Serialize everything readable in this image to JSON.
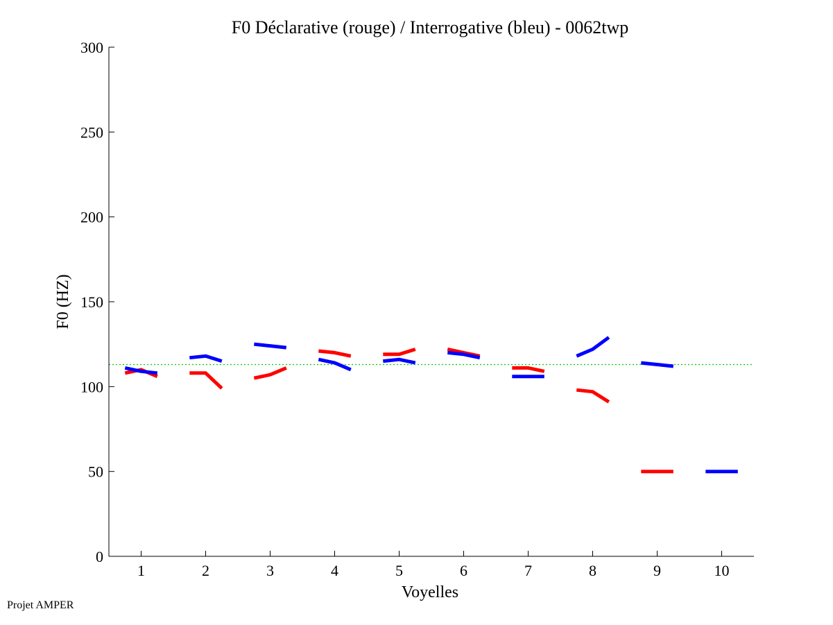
{
  "chart_data": {
    "type": "line",
    "title": "F0 Déclarative (rouge) / Interrogative (bleu) - 0062twp",
    "xlabel": "Voyelles",
    "ylabel": "F0 (HZ)",
    "xlim": [
      0.5,
      10.5
    ],
    "ylim": [
      0,
      300
    ],
    "x_ticks": [
      1,
      2,
      3,
      4,
      5,
      6,
      7,
      8,
      9,
      10
    ],
    "y_ticks": [
      0,
      50,
      100,
      150,
      200,
      250,
      300
    ],
    "reference_line": {
      "y": 113,
      "color": "#00cc00",
      "style": "dotted"
    },
    "series": [
      {
        "color": "#ff0000",
        "segments": [
          {
            "x": [
              0.75,
              1.0,
              1.25
            ],
            "y": [
              108,
              110,
              106
            ]
          },
          {
            "x": [
              1.75,
              2.0,
              2.25
            ],
            "y": [
              108,
              108,
              99
            ]
          },
          {
            "x": [
              2.75,
              3.0,
              3.25
            ],
            "y": [
              105,
              107,
              111
            ]
          },
          {
            "x": [
              3.75,
              4.0,
              4.25
            ],
            "y": [
              121,
              120,
              118
            ]
          },
          {
            "x": [
              4.75,
              5.0,
              5.25
            ],
            "y": [
              119,
              119,
              122
            ]
          },
          {
            "x": [
              5.75,
              6.0,
              6.25
            ],
            "y": [
              122,
              120,
              118
            ]
          },
          {
            "x": [
              6.75,
              7.0,
              7.25
            ],
            "y": [
              111,
              111,
              109
            ]
          },
          {
            "x": [
              7.75,
              8.0,
              8.25
            ],
            "y": [
              98,
              97,
              91
            ]
          },
          {
            "x": [
              8.75,
              9.0,
              9.25
            ],
            "y": [
              50,
              50,
              50
            ]
          }
        ]
      },
      {
        "color": "#0000ff",
        "segments": [
          {
            "x": [
              0.75,
              1.0,
              1.25
            ],
            "y": [
              111,
              109,
              108
            ]
          },
          {
            "x": [
              1.75,
              2.0,
              2.25
            ],
            "y": [
              117,
              118,
              115
            ]
          },
          {
            "x": [
              2.75,
              3.0,
              3.25
            ],
            "y": [
              125,
              124,
              123
            ]
          },
          {
            "x": [
              3.75,
              4.0,
              4.25
            ],
            "y": [
              116,
              114,
              110
            ]
          },
          {
            "x": [
              4.75,
              5.0,
              5.25
            ],
            "y": [
              115,
              116,
              114
            ]
          },
          {
            "x": [
              5.75,
              6.0,
              6.25
            ],
            "y": [
              120,
              119,
              117
            ]
          },
          {
            "x": [
              6.75,
              7.0,
              7.25
            ],
            "y": [
              106,
              106,
              106
            ]
          },
          {
            "x": [
              7.75,
              8.0,
              8.25
            ],
            "y": [
              118,
              122,
              129
            ]
          },
          {
            "x": [
              8.75,
              9.0,
              9.25
            ],
            "y": [
              114,
              113,
              112
            ]
          },
          {
            "x": [
              9.75,
              10.0,
              10.25
            ],
            "y": [
              50,
              50,
              50
            ]
          }
        ]
      }
    ]
  },
  "footer_text": "Projet AMPER"
}
